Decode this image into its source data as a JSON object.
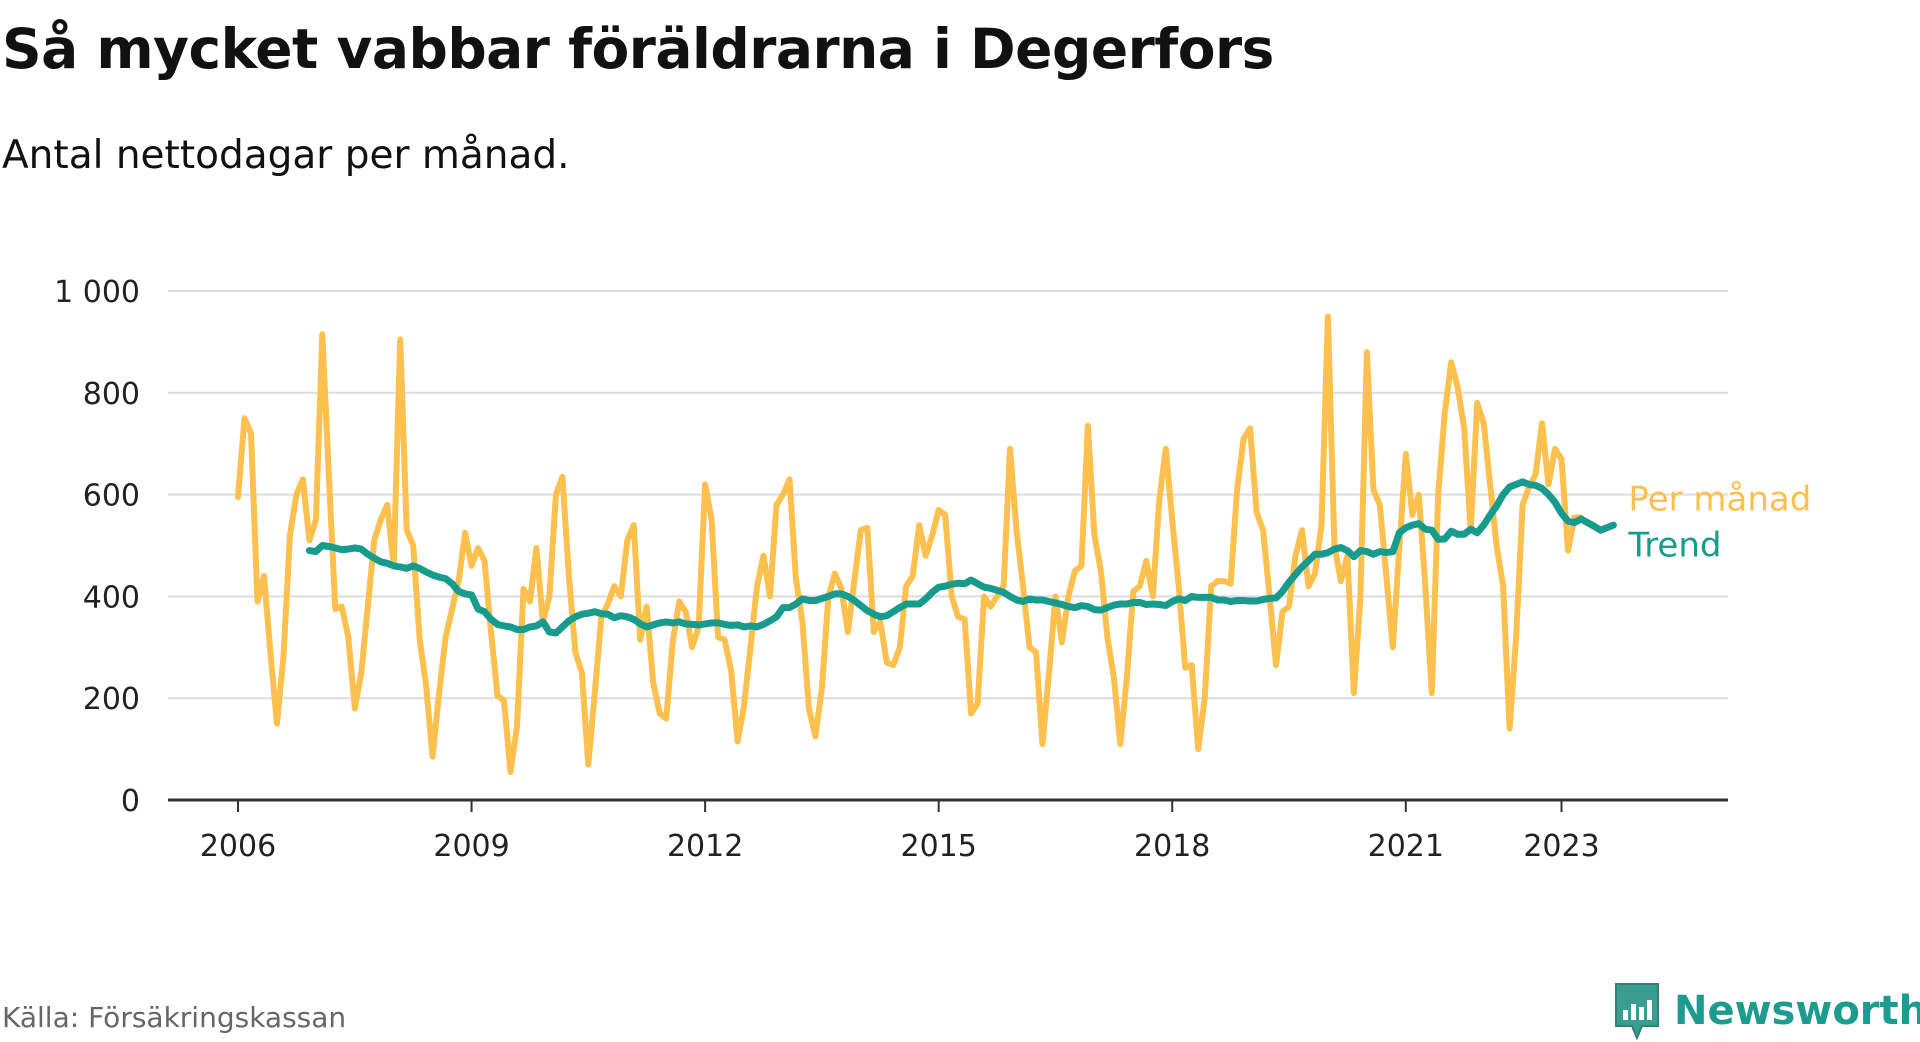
{
  "title": "Så mycket vabbar föräldrarna i Degerfors",
  "subtitle": "Antal nettodagar per månad.",
  "source": "Källa: Försäkringskassan",
  "brand": {
    "name": "Newsworthy",
    "icon": "newsworthy-logo-icon",
    "color": "#3a9d8f"
  },
  "colors": {
    "monthly": "#fbc04e",
    "trend": "#169b8d",
    "grid": "#dddddd",
    "axis": "#333333",
    "text": "#222222"
  },
  "chart_data": {
    "type": "line",
    "title": "Så mycket vabbar föräldrarna i Degerfors",
    "subtitle": "Antal nettodagar per månad.",
    "ylim": [
      0,
      1000
    ],
    "y_ticks": [
      0,
      200,
      400,
      600,
      800,
      1000
    ],
    "y_tick_labels": [
      "0",
      "200",
      "400",
      "600",
      "800",
      "1 000"
    ],
    "xlim": [
      2006.0,
      2025.1
    ],
    "x_ticks": [
      2006,
      2009,
      2012,
      2015,
      2018,
      2021,
      2023
    ],
    "x_tick_labels": [
      "2006",
      "2009",
      "2012",
      "2015",
      "2018",
      "2021",
      "2023"
    ],
    "grid": true,
    "legend": "inline labels at right end of lines",
    "series": [
      {
        "name": "Per månad",
        "start": 2006.0,
        "values": [
          595,
          750,
          720,
          390,
          440,
          290,
          150,
          280,
          520,
          600,
          630,
          510,
          550,
          915,
          640,
          375,
          380,
          320,
          180,
          250,
          380,
          510,
          550,
          580,
          460,
          905,
          530,
          500,
          315,
          225,
          85,
          210,
          320,
          375,
          430,
          525,
          460,
          495,
          470,
          330,
          205,
          195,
          55,
          145,
          415,
          390,
          495,
          350,
          400,
          600,
          635,
          440,
          290,
          250,
          70,
          210,
          360,
          385,
          420,
          400,
          510,
          540,
          315,
          380,
          230,
          170,
          160,
          310,
          390,
          370,
          300,
          340,
          620,
          550,
          320,
          315,
          255,
          115,
          185,
          300,
          420,
          480,
          400,
          580,
          600,
          630,
          435,
          350,
          180,
          125,
          220,
          400,
          445,
          415,
          330,
          430,
          530,
          535,
          330,
          350,
          270,
          265,
          300,
          420,
          440,
          540,
          480,
          520,
          570,
          560,
          400,
          360,
          355,
          170,
          190,
          400,
          380,
          400,
          420,
          690,
          530,
          420,
          300,
          290,
          110,
          250,
          400,
          310,
          400,
          450,
          460,
          735,
          520,
          450,
          320,
          240,
          110,
          240,
          410,
          420,
          470,
          400,
          590,
          690,
          550,
          420,
          260,
          265,
          100,
          200,
          420,
          430,
          430,
          425,
          610,
          710,
          730,
          565,
          530,
          400,
          265,
          370,
          380,
          480,
          530,
          420,
          445,
          540,
          950,
          500,
          430,
          480,
          210,
          400,
          880,
          610,
          580,
          440,
          300,
          495,
          680,
          560,
          600,
          420,
          210,
          600,
          760,
          860,
          810,
          730,
          530,
          780,
          740,
          620,
          500,
          420,
          140,
          320,
          580,
          615,
          640,
          740,
          620,
          690,
          670,
          490,
          555,
          555
        ]
      },
      {
        "name": "Trend",
        "start": 2006.917,
        "values": [
          490,
          488,
          500,
          498,
          495,
          492,
          493,
          495,
          493,
          483,
          475,
          468,
          465,
          460,
          458,
          455,
          460,
          455,
          448,
          442,
          438,
          435,
          425,
          410,
          405,
          403,
          375,
          370,
          355,
          345,
          342,
          340,
          335,
          335,
          340,
          342,
          350,
          330,
          328,
          340,
          352,
          360,
          365,
          367,
          370,
          366,
          365,
          358,
          362,
          360,
          355,
          346,
          340,
          344,
          348,
          350,
          348,
          350,
          346,
          345,
          344,
          346,
          348,
          348,
          345,
          343,
          344,
          340,
          342,
          340,
          345,
          352,
          360,
          378,
          378,
          385,
          395,
          392,
          392,
          396,
          400,
          405,
          405,
          400,
          392,
          382,
          372,
          365,
          360,
          362,
          370,
          378,
          385,
          385,
          385,
          395,
          408,
          418,
          420,
          424,
          426,
          425,
          432,
          425,
          418,
          416,
          412,
          408,
          400,
          393,
          390,
          395,
          393,
          393,
          390,
          387,
          384,
          380,
          378,
          382,
          380,
          374,
          373,
          378,
          383,
          385,
          385,
          388,
          388,
          384,
          385,
          384,
          382,
          390,
          395,
          392,
          400,
          398,
          398,
          398,
          393,
          393,
          390,
          392,
          392,
          391,
          391,
          394,
          396,
          397,
          410,
          428,
          443,
          458,
          470,
          483,
          483,
          486,
          493,
          496,
          490,
          478,
          490,
          488,
          483,
          488,
          486,
          488,
          525,
          535,
          540,
          543,
          532,
          530,
          512,
          513,
          528,
          522,
          522,
          532,
          525,
          540,
          560,
          578,
          600,
          615,
          620,
          625,
          620,
          618,
          612,
          600,
          585,
          563,
          548,
          545,
          552,
          545,
          538,
          530,
          535,
          540
        ]
      }
    ],
    "line_labels": [
      "Per månad",
      "Trend"
    ]
  }
}
